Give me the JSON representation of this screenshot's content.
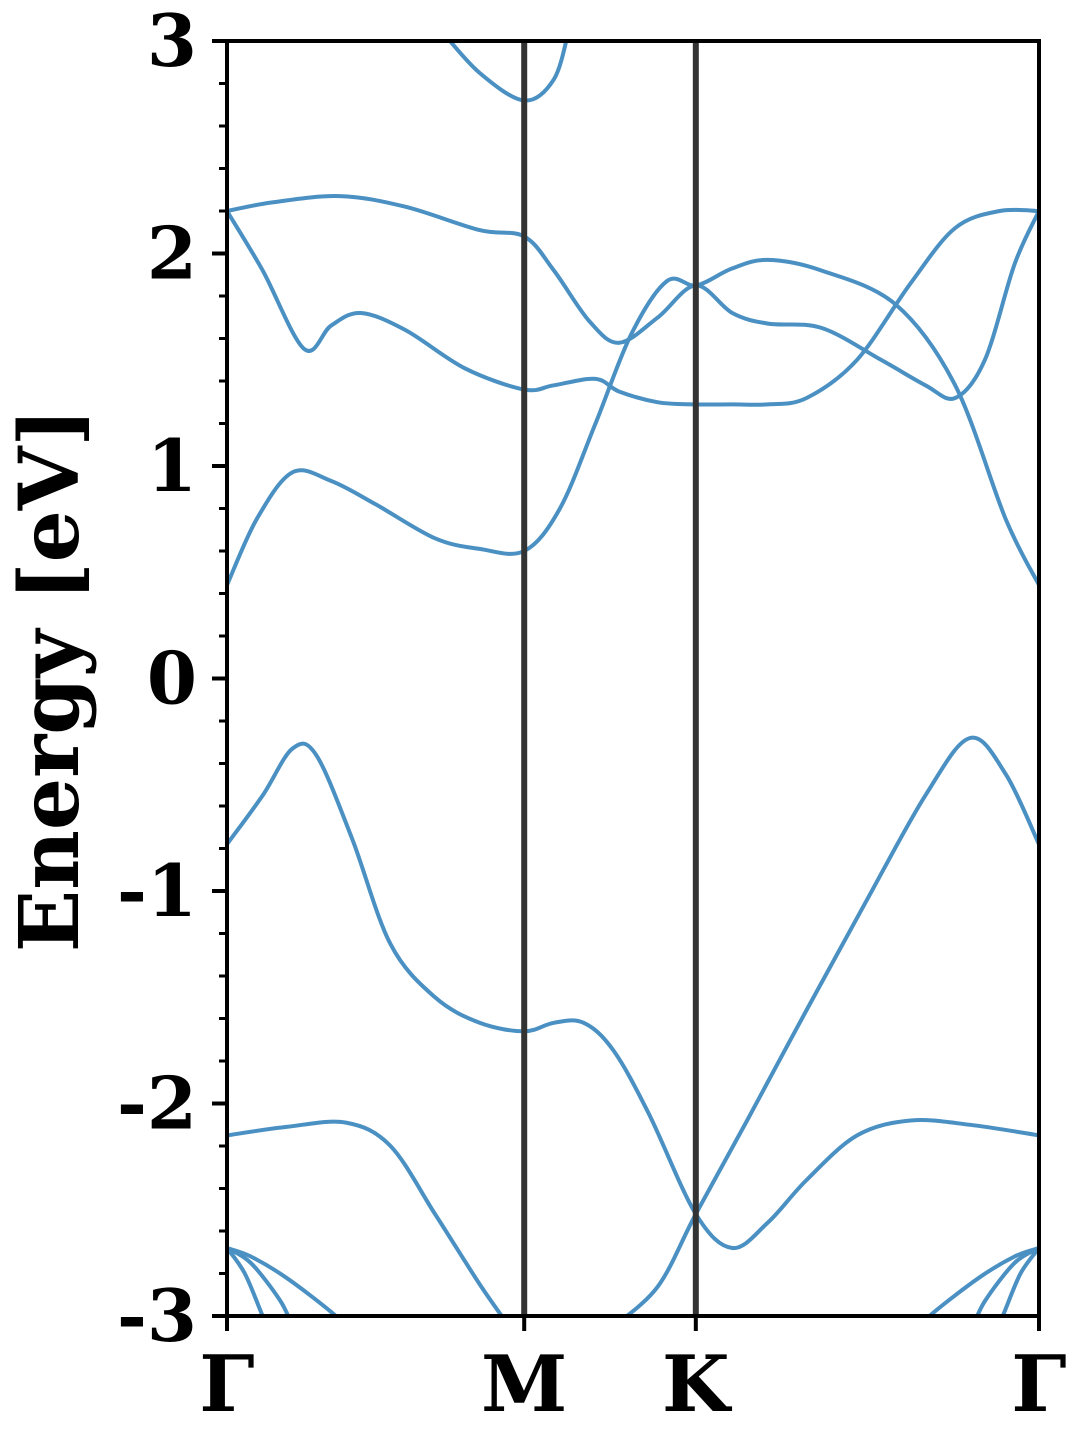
{
  "chart_data": {
    "type": "line",
    "title": "",
    "xlabel": "",
    "ylabel": "Energy [eV]",
    "ylim": [
      -3,
      3
    ],
    "xlim": [
      0,
      2.7321
    ],
    "yticks": [
      -3,
      -2,
      -1,
      0,
      1,
      2,
      3
    ],
    "ytick_labels": [
      "-3",
      "-2",
      "-1",
      "0",
      "1",
      "2",
      "3"
    ],
    "minor_ytick_step": 0.2,
    "high_symmetry_points": [
      {
        "label": "Γ",
        "x": 0
      },
      {
        "label": "M",
        "x": 1.0
      },
      {
        "label": "K",
        "x": 1.5774
      },
      {
        "label": "Γ",
        "x": 2.7321
      }
    ],
    "band_color": "#4a90c2",
    "divider_color": "#333333",
    "grid": false,
    "legend": "none",
    "series": [
      {
        "values": [
          [
            0,
            0.44
          ],
          [
            0.1,
            0.75
          ],
          [
            0.22,
            0.97
          ],
          [
            0.35,
            0.93
          ],
          [
            0.5,
            0.82
          ],
          [
            0.7,
            0.66
          ],
          [
            0.85,
            0.61
          ],
          [
            1.0,
            0.6
          ],
          [
            1.12,
            0.8
          ],
          [
            1.24,
            1.2
          ],
          [
            1.36,
            1.62
          ],
          [
            1.48,
            1.87
          ],
          [
            1.58,
            1.85
          ],
          [
            1.7,
            1.93
          ],
          [
            1.82,
            1.97
          ],
          [
            2.0,
            1.92
          ],
          [
            2.25,
            1.76
          ],
          [
            2.45,
            1.38
          ],
          [
            2.62,
            0.75
          ],
          [
            2.7321,
            0.44
          ]
        ]
      },
      {
        "values": [
          [
            0,
            2.2
          ],
          [
            0.12,
            1.92
          ],
          [
            0.26,
            1.55
          ],
          [
            0.35,
            1.66
          ],
          [
            0.45,
            1.72
          ],
          [
            0.6,
            1.64
          ],
          [
            0.8,
            1.46
          ],
          [
            1.0,
            1.36
          ],
          [
            1.1,
            1.38
          ],
          [
            1.24,
            1.41
          ],
          [
            1.32,
            1.35
          ],
          [
            1.45,
            1.3
          ],
          [
            1.5774,
            1.29
          ],
          [
            1.7,
            1.29
          ],
          [
            1.82,
            1.29
          ],
          [
            1.95,
            1.32
          ],
          [
            2.12,
            1.5
          ],
          [
            2.3,
            1.86
          ],
          [
            2.45,
            2.12
          ],
          [
            2.6,
            2.2
          ],
          [
            2.7321,
            2.2
          ]
        ]
      },
      {
        "values": [
          [
            0,
            2.2
          ],
          [
            0.15,
            2.24
          ],
          [
            0.38,
            2.27
          ],
          [
            0.6,
            2.22
          ],
          [
            0.85,
            2.11
          ],
          [
            1.0,
            2.08
          ],
          [
            1.1,
            1.92
          ],
          [
            1.22,
            1.68
          ],
          [
            1.32,
            1.58
          ],
          [
            1.45,
            1.7
          ],
          [
            1.5774,
            1.85
          ],
          [
            1.7,
            1.72
          ],
          [
            1.82,
            1.67
          ],
          [
            2.0,
            1.65
          ],
          [
            2.2,
            1.5
          ],
          [
            2.35,
            1.38
          ],
          [
            2.45,
            1.32
          ],
          [
            2.55,
            1.5
          ],
          [
            2.65,
            1.95
          ],
          [
            2.7321,
            2.2
          ]
        ]
      },
      {
        "values": [
          [
            0,
            -0.78
          ],
          [
            0.12,
            -0.55
          ],
          [
            0.22,
            -0.33
          ],
          [
            0.3,
            -0.36
          ],
          [
            0.42,
            -0.75
          ],
          [
            0.55,
            -1.25
          ],
          [
            0.7,
            -1.5
          ],
          [
            0.85,
            -1.62
          ],
          [
            1.0,
            -1.66
          ],
          [
            1.1,
            -1.62
          ],
          [
            1.2,
            -1.62
          ],
          [
            1.3,
            -1.75
          ],
          [
            1.42,
            -2.05
          ],
          [
            1.5774,
            -2.52
          ],
          [
            1.7,
            -2.68
          ],
          [
            1.82,
            -2.56
          ],
          [
            1.95,
            -2.36
          ],
          [
            2.12,
            -2.15
          ],
          [
            2.3,
            -2.08
          ],
          [
            2.5,
            -2.1
          ],
          [
            2.7321,
            -2.15
          ]
        ]
      },
      {
        "values": [
          [
            0,
            -2.15
          ],
          [
            0.2,
            -2.11
          ],
          [
            0.4,
            -2.09
          ],
          [
            0.55,
            -2.2
          ],
          [
            0.7,
            -2.52
          ],
          [
            0.85,
            -2.85
          ],
          [
            0.95,
            -3.05
          ]
        ]
      },
      {
        "values": [
          [
            1.3,
            -3.05
          ],
          [
            1.45,
            -2.86
          ],
          [
            1.5774,
            -2.52
          ],
          [
            1.75,
            -2.08
          ],
          [
            1.95,
            -1.56
          ],
          [
            2.15,
            -1.05
          ],
          [
            2.35,
            -0.55
          ],
          [
            2.5,
            -0.28
          ],
          [
            2.62,
            -0.45
          ],
          [
            2.7321,
            -0.78
          ]
        ]
      },
      {
        "values": [
          [
            0,
            -2.68
          ],
          [
            0.08,
            -2.72
          ],
          [
            0.2,
            -2.82
          ],
          [
            0.35,
            -2.98
          ],
          [
            0.4,
            -3.05
          ]
        ]
      },
      {
        "values": [
          [
            0,
            -2.68
          ],
          [
            0.08,
            -2.75
          ],
          [
            0.18,
            -2.93
          ],
          [
            0.22,
            -3.05
          ]
        ]
      },
      {
        "values": [
          [
            0,
            -2.68
          ],
          [
            0.06,
            -2.8
          ],
          [
            0.12,
            -3.0
          ],
          [
            0.14,
            -3.05
          ]
        ]
      },
      {
        "values": [
          [
            2.7321,
            -2.68
          ],
          [
            2.65,
            -2.72
          ],
          [
            2.53,
            -2.82
          ],
          [
            2.38,
            -2.98
          ],
          [
            2.33,
            -3.05
          ]
        ]
      },
      {
        "values": [
          [
            2.7321,
            -2.68
          ],
          [
            2.65,
            -2.75
          ],
          [
            2.55,
            -2.93
          ],
          [
            2.51,
            -3.05
          ]
        ]
      },
      {
        "values": [
          [
            2.7321,
            -2.68
          ],
          [
            2.67,
            -2.8
          ],
          [
            2.61,
            -3.0
          ],
          [
            2.59,
            -3.05
          ]
        ]
      },
      {
        "values": [
          [
            0.72,
            3.05
          ],
          [
            0.85,
            2.85
          ],
          [
            1.0,
            2.72
          ],
          [
            1.1,
            2.82
          ],
          [
            1.15,
            3.05
          ]
        ]
      }
    ]
  }
}
